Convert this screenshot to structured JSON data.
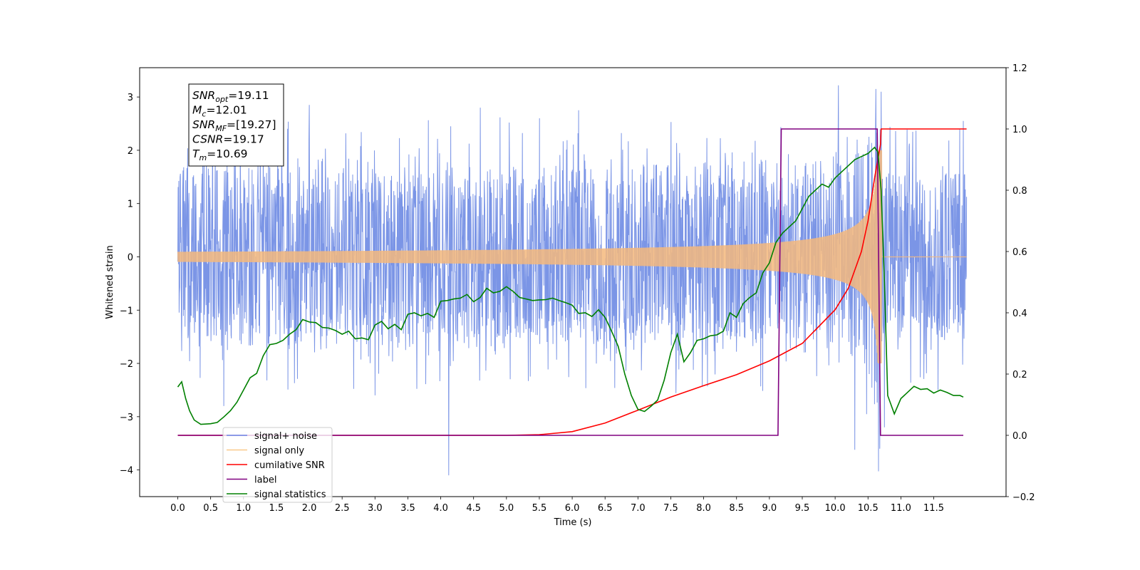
{
  "chart_data": {
    "type": "line",
    "xlabel": "Time (s)",
    "ylabel": "Whitened strain",
    "xlim": [
      -0.58,
      12.6
    ],
    "ylim": [
      -4.5,
      3.55
    ],
    "ylim_right": [
      -0.2,
      1.2
    ],
    "x_ticks": [
      0.0,
      0.5,
      1.0,
      1.5,
      2.0,
      2.5,
      3.0,
      3.5,
      4.0,
      4.5,
      5.0,
      5.5,
      6.0,
      6.5,
      7.0,
      7.5,
      8.0,
      8.5,
      9.0,
      9.5,
      10.0,
      10.5,
      11.0,
      11.5
    ],
    "x_tick_labels": [
      "0.0",
      "0.5",
      "1.0",
      "1.5",
      "2.0",
      "2.5",
      "3.0",
      "3.5",
      "4.0",
      "4.5",
      "5.0",
      "5.5",
      "6.0",
      "6.5",
      "7.0",
      "7.5",
      "8.0",
      "8.5",
      "9.0",
      "9.5",
      "10.0",
      "10.5",
      "11.0",
      "11.5"
    ],
    "y_ticks": [
      -4,
      -3,
      -2,
      -1,
      0,
      1,
      2,
      3
    ],
    "y_tick_labels": [
      "−4",
      "−3",
      "−2",
      "−1",
      "0",
      "1",
      "2",
      "3"
    ],
    "y_right_ticks": [
      -0.2,
      0.0,
      0.2,
      0.4,
      0.6,
      0.8,
      1.0,
      1.2
    ],
    "y_right_tick_labels": [
      "−0.2",
      "0.0",
      "0.2",
      "0.4",
      "0.6",
      "0.8",
      "1.0",
      "1.2"
    ],
    "noise": {
      "duration": 12.0,
      "start": 0.0,
      "samples": 2400,
      "base_amplitude": 1.15,
      "spikes": [
        {
          "t": 0.7,
          "v": -2.8
        },
        {
          "t": 1.3,
          "v": 2.3
        },
        {
          "t": 2.0,
          "v": 2.85
        },
        {
          "t": 3.0,
          "v": -2.6
        },
        {
          "t": 4.12,
          "v": -4.1
        },
        {
          "t": 4.6,
          "v": 2.8
        },
        {
          "t": 6.1,
          "v": 2.75
        },
        {
          "t": 10.05,
          "v": 3.22
        },
        {
          "t": 10.3,
          "v": -3.62
        },
        {
          "t": 10.62,
          "v": 3.15
        },
        {
          "t": 10.7,
          "v": 3.1
        },
        {
          "t": 10.68,
          "v": -3.6
        },
        {
          "t": 10.75,
          "v": -3.2
        },
        {
          "t": 11.95,
          "v": 2.55
        },
        {
          "t": 0.95,
          "v": 2.15
        },
        {
          "t": 5.5,
          "v": 2.6
        }
      ],
      "color": "#5a7be0"
    },
    "signal": {
      "t_merge": 10.69,
      "peak_amplitude": 2.0,
      "color": "#f5b87d"
    },
    "series": [
      {
        "name": "cumilative SNR",
        "axis": "right",
        "color": "#ff0000",
        "x": [
          0.0,
          5.0,
          5.5,
          6.0,
          6.5,
          7.0,
          7.5,
          8.0,
          8.5,
          9.0,
          9.5,
          10.0,
          10.2,
          10.4,
          10.5,
          10.6,
          10.69,
          10.7,
          12.0
        ],
        "y": [
          0.0,
          0.0,
          0.002,
          0.012,
          0.04,
          0.082,
          0.125,
          0.162,
          0.198,
          0.243,
          0.3,
          0.41,
          0.48,
          0.6,
          0.7,
          0.84,
          0.95,
          1.0,
          1.0
        ]
      },
      {
        "name": "label",
        "axis": "right",
        "color": "#800080",
        "x": [
          0.0,
          9.13,
          9.18,
          10.64,
          10.69,
          11.95
        ],
        "y": [
          0.0,
          0.0,
          1.0,
          1.0,
          0.0,
          0.0
        ]
      },
      {
        "name": "signal statistics",
        "axis": "right",
        "color": "#008000",
        "x": [
          0.0,
          0.06,
          0.12,
          0.18,
          0.25,
          0.35,
          0.5,
          0.6,
          0.7,
          0.8,
          0.9,
          1.0,
          1.1,
          1.2,
          1.3,
          1.4,
          1.5,
          1.6,
          1.7,
          1.8,
          1.9,
          2.0,
          2.1,
          2.2,
          2.3,
          2.4,
          2.5,
          2.6,
          2.7,
          2.8,
          2.9,
          3.0,
          3.1,
          3.2,
          3.3,
          3.4,
          3.5,
          3.6,
          3.7,
          3.8,
          3.9,
          4.0,
          4.1,
          4.2,
          4.3,
          4.4,
          4.5,
          4.6,
          4.7,
          4.8,
          4.9,
          5.0,
          5.1,
          5.2,
          5.3,
          5.4,
          5.5,
          5.6,
          5.7,
          5.8,
          5.9,
          6.0,
          6.1,
          6.2,
          6.3,
          6.4,
          6.5,
          6.6,
          6.7,
          6.8,
          6.9,
          7.0,
          7.1,
          7.2,
          7.3,
          7.4,
          7.5,
          7.6,
          7.7,
          7.8,
          7.9,
          8.0,
          8.1,
          8.2,
          8.3,
          8.4,
          8.5,
          8.6,
          8.7,
          8.8,
          8.9,
          9.0,
          9.1,
          9.2,
          9.3,
          9.4,
          9.5,
          9.6,
          9.7,
          9.8,
          9.9,
          10.0,
          10.1,
          10.2,
          10.3,
          10.4,
          10.5,
          10.6,
          10.65,
          10.7,
          10.75,
          10.8,
          10.9,
          11.0,
          11.1,
          11.2,
          11.3,
          11.4,
          11.5,
          11.6,
          11.7,
          11.8,
          11.9,
          11.95
        ],
        "y": [
          0.158,
          0.175,
          0.12,
          0.08,
          0.05,
          0.036,
          0.038,
          0.042,
          0.06,
          0.08,
          0.108,
          0.148,
          0.188,
          0.202,
          0.26,
          0.296,
          0.3,
          0.31,
          0.33,
          0.345,
          0.378,
          0.37,
          0.368,
          0.352,
          0.35,
          0.342,
          0.33,
          0.34,
          0.315,
          0.318,
          0.312,
          0.36,
          0.372,
          0.348,
          0.362,
          0.345,
          0.395,
          0.4,
          0.39,
          0.398,
          0.385,
          0.438,
          0.44,
          0.445,
          0.448,
          0.46,
          0.436,
          0.45,
          0.48,
          0.465,
          0.47,
          0.485,
          0.47,
          0.45,
          0.445,
          0.44,
          0.442,
          0.443,
          0.448,
          0.44,
          0.433,
          0.425,
          0.398,
          0.4,
          0.388,
          0.41,
          0.385,
          0.34,
          0.29,
          0.2,
          0.13,
          0.085,
          0.078,
          0.095,
          0.115,
          0.18,
          0.27,
          0.33,
          0.24,
          0.27,
          0.31,
          0.315,
          0.325,
          0.328,
          0.34,
          0.4,
          0.385,
          0.43,
          0.45,
          0.465,
          0.53,
          0.563,
          0.63,
          0.66,
          0.68,
          0.7,
          0.74,
          0.78,
          0.8,
          0.82,
          0.81,
          0.84,
          0.86,
          0.88,
          0.9,
          0.91,
          0.92,
          0.94,
          0.925,
          0.8,
          0.5,
          0.13,
          0.07,
          0.12,
          0.14,
          0.16,
          0.15,
          0.152,
          0.138,
          0.148,
          0.14,
          0.13,
          0.13,
          0.125
        ]
      }
    ],
    "legend": {
      "placement": "lower-left",
      "entries": [
        {
          "label": "signal+ noise",
          "color": "#6a85e8"
        },
        {
          "label": "signal only",
          "color": "#f9c98a"
        },
        {
          "label": "cumilative SNR",
          "color": "#ff0000"
        },
        {
          "label": "label",
          "color": "#800080"
        },
        {
          "label": "signal statistics",
          "color": "#008000"
        }
      ]
    },
    "annotations": [
      {
        "main": "SNR",
        "sub": "opt",
        "rest": "=19.11"
      },
      {
        "main": "M",
        "sub": "c",
        "rest": "=12.01"
      },
      {
        "main": "SNR",
        "sub": "MF",
        "rest": "=[19.27]"
      },
      {
        "main": "CSNR",
        "sub": "",
        "rest": "=19.17"
      },
      {
        "main": "T",
        "sub": "m",
        "rest": "=10.69"
      }
    ]
  }
}
